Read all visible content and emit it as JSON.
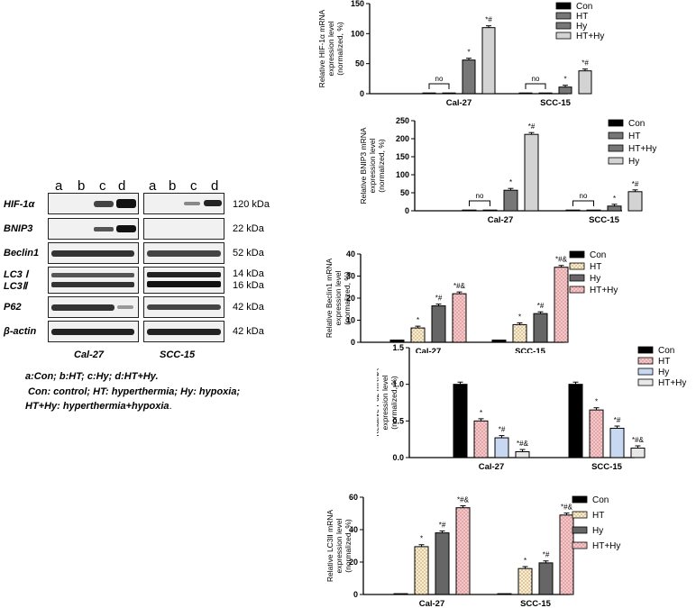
{
  "western_blot": {
    "lanes_left": [
      "a",
      "b",
      "c",
      "d"
    ],
    "lanes_right": [
      "a",
      "b",
      "c",
      "d"
    ],
    "rows": [
      {
        "protein": "HIF-1α",
        "kda": "120 kDa"
      },
      {
        "protein": "BNIP3",
        "kda": "22 kDa"
      },
      {
        "protein": "Beclin1",
        "kda": "52 kDa"
      },
      {
        "protein": "LC3 Ⅰ",
        "kda": "14 kDa"
      },
      {
        "protein": "LC3Ⅱ",
        "kda": "16 kDa"
      },
      {
        "protein": "P62",
        "kda": "42 kDa"
      },
      {
        "protein": "β-actin",
        "kda": "42 kDa"
      }
    ],
    "cell_left": "Cal-27",
    "cell_right": "SCC-15",
    "legend_line1": "a:Con; b:HT; c:Hy; d:HT+Hy.",
    "legend_line2": " Con: control; HT: hyperthermia; Hy: hypoxia;",
    "legend_line3_a": "HT+Hy: hyperthermia+hypoxia",
    "legend_line3_b": "."
  },
  "chart_data": [
    {
      "type": "bar",
      "ylabel": "Relative HIF-1α mRNA expression level (normalized, %)",
      "categories": [
        "Cal-27",
        "SCC-15"
      ],
      "ylim": [
        0,
        150
      ],
      "yticks": [
        0,
        50,
        100,
        150
      ],
      "series": [
        {
          "name": "Con",
          "values": [
            1,
            1
          ],
          "color": "#000000",
          "pattern": "solid"
        },
        {
          "name": "HT",
          "values": [
            0.5,
            0.5
          ],
          "color": "#777777",
          "pattern": "solid"
        },
        {
          "name": "Hy",
          "values": [
            56,
            11
          ],
          "color": "#777777",
          "pattern": "solid"
        },
        {
          "name": "HT+Hy",
          "values": [
            110,
            38
          ],
          "color": "#d3d3d3",
          "pattern": "solid"
        }
      ],
      "annotations": [
        {
          "text": "no",
          "cat": 0,
          "between": [
            0,
            1
          ]
        },
        {
          "text": "no",
          "cat": 1,
          "between": [
            0,
            1
          ]
        },
        {
          "text": "*",
          "cat": 0,
          "series": 2
        },
        {
          "text": "*#",
          "cat": 0,
          "series": 3
        },
        {
          "text": "*",
          "cat": 1,
          "series": 2
        },
        {
          "text": "*#",
          "cat": 1,
          "series": 3
        }
      ]
    },
    {
      "type": "bar",
      "ylabel": "Relative BNIP3 mRNA expression level (normalized, %)",
      "categories": [
        "Cal-27",
        "SCC-15"
      ],
      "ylim": [
        0,
        250
      ],
      "yticks": [
        0,
        50,
        100,
        150,
        200,
        250
      ],
      "series": [
        {
          "name": "Con",
          "values": [
            1,
            1
          ],
          "color": "#000000",
          "pattern": "solid"
        },
        {
          "name": "HT",
          "values": [
            1,
            1
          ],
          "color": "#777777",
          "pattern": "solid"
        },
        {
          "name": "HT+Hy",
          "values": [
            57,
            13
          ],
          "color": "#777777",
          "pattern": "solid"
        },
        {
          "name": "Hy",
          "values": [
            212,
            53
          ],
          "color": "#d3d3d3",
          "pattern": "solid"
        }
      ],
      "annotations": [
        {
          "text": "no",
          "cat": 0,
          "between": [
            0,
            1
          ]
        },
        {
          "text": "no",
          "cat": 1,
          "between": [
            0,
            1
          ]
        },
        {
          "text": "*",
          "cat": 0,
          "series": 2
        },
        {
          "text": "*#",
          "cat": 0,
          "series": 3
        },
        {
          "text": "*",
          "cat": 1,
          "series": 2
        },
        {
          "text": "*#",
          "cat": 1,
          "series": 3
        }
      ]
    },
    {
      "type": "bar",
      "ylabel": "Relative Beclin1 mRNA expression level (normalized, %)",
      "categories": [
        "Cal-27",
        "SCC-15"
      ],
      "ylim": [
        0,
        40
      ],
      "yticks": [
        0,
        10,
        20,
        30,
        40
      ],
      "series": [
        {
          "name": "Con",
          "values": [
            1,
            1
          ],
          "color": "#000000",
          "pattern": "solid"
        },
        {
          "name": "HT",
          "values": [
            6.5,
            8
          ],
          "color": "#f5f0c8",
          "pattern": "dots"
        },
        {
          "name": "Hy",
          "values": [
            16.5,
            13
          ],
          "color": "#666666",
          "pattern": "solid"
        },
        {
          "name": "HT+Hy",
          "values": [
            22,
            34
          ],
          "color": "#f6c6c8",
          "pattern": "dots"
        }
      ],
      "annotations": [
        {
          "text": "*",
          "cat": 0,
          "series": 1
        },
        {
          "text": "*#",
          "cat": 0,
          "series": 2
        },
        {
          "text": "*#&",
          "cat": 0,
          "series": 3
        },
        {
          "text": "*",
          "cat": 1,
          "series": 1
        },
        {
          "text": "*#",
          "cat": 1,
          "series": 2
        },
        {
          "text": "*#&",
          "cat": 1,
          "series": 3
        }
      ]
    },
    {
      "type": "bar",
      "ylabel": "Relative P62 mRNA expression level (normalized, %)",
      "categories": [
        "Cal-27",
        "SCC-15"
      ],
      "ylim": [
        0,
        1.5
      ],
      "yticks": [
        "0.0",
        "0.5",
        "1.0",
        "1.5"
      ],
      "series": [
        {
          "name": "Con",
          "values": [
            1.0,
            1.0
          ],
          "color": "#000000",
          "pattern": "solid"
        },
        {
          "name": "HT",
          "values": [
            0.5,
            0.65
          ],
          "color": "#f6c6c8",
          "pattern": "dots"
        },
        {
          "name": "Hy",
          "values": [
            0.27,
            0.4
          ],
          "color": "#c9d8f2",
          "pattern": "solid"
        },
        {
          "name": "HT+Hy",
          "values": [
            0.08,
            0.13
          ],
          "color": "#e8e8e8",
          "pattern": "solid"
        }
      ],
      "annotations": [
        {
          "text": "*",
          "cat": 0,
          "series": 1
        },
        {
          "text": "*#",
          "cat": 0,
          "series": 2
        },
        {
          "text": "*#&",
          "cat": 0,
          "series": 3
        },
        {
          "text": "*",
          "cat": 1,
          "series": 1
        },
        {
          "text": "*#",
          "cat": 1,
          "series": 2
        },
        {
          "text": "*#&",
          "cat": 1,
          "series": 3
        }
      ]
    },
    {
      "type": "bar",
      "ylabel": "Relative LC3Ⅱ mRNA expression level (normalized, %)",
      "categories": [
        "Cal-27",
        "SCC-15"
      ],
      "ylim": [
        0,
        60
      ],
      "yticks": [
        0,
        20,
        40,
        60
      ],
      "series": [
        {
          "name": "Con",
          "values": [
            0.5,
            0.5
          ],
          "color": "#000000",
          "pattern": "solid"
        },
        {
          "name": "HT",
          "values": [
            29.5,
            16
          ],
          "color": "#f5f0c8",
          "pattern": "dots"
        },
        {
          "name": "Hy",
          "values": [
            38,
            19.5
          ],
          "color": "#666666",
          "pattern": "solid"
        },
        {
          "name": "HT+Hy",
          "values": [
            53.5,
            49
          ],
          "color": "#f6c6c8",
          "pattern": "dots"
        }
      ],
      "annotations": [
        {
          "text": "*",
          "cat": 0,
          "series": 1
        },
        {
          "text": "*#",
          "cat": 0,
          "series": 2
        },
        {
          "text": "*#&",
          "cat": 0,
          "series": 3
        },
        {
          "text": "*",
          "cat": 1,
          "series": 1
        },
        {
          "text": "*#",
          "cat": 1,
          "series": 2
        },
        {
          "text": "*#&",
          "cat": 1,
          "series": 3
        }
      ]
    }
  ]
}
